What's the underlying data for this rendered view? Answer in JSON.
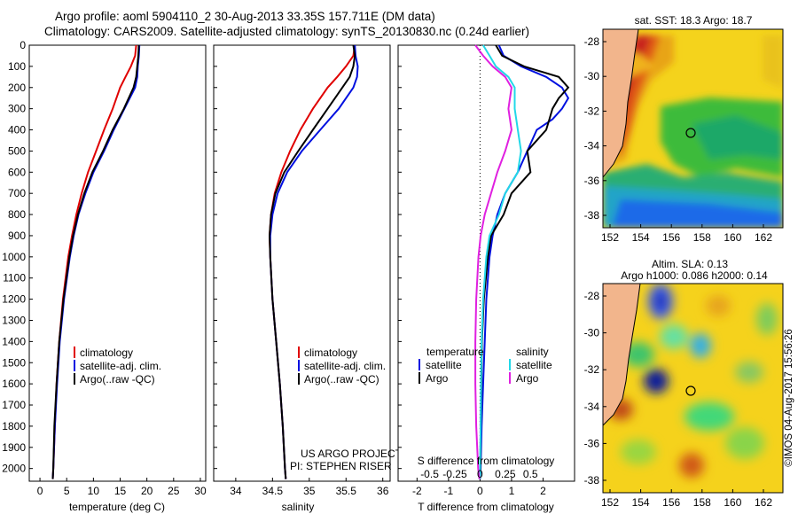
{
  "header": {
    "title_line1": "Argo profile: aoml 5904110_2 30-Aug-2013 33.35S 157.711E (DM data)",
    "title_line2": "Climatology: CARS2009. Satellite-adjusted climatology: synTS_20130830.nc (0.24d earlier)"
  },
  "colors": {
    "climatology": "#e00000",
    "satellite": "#0010e0",
    "argo": "#000000",
    "sat_salinity": "#22d8e8",
    "argo_salinity": "#e020e0"
  },
  "chart_data": [
    {
      "type": "line",
      "id": "temperature",
      "xlabel": "temperature (deg C)",
      "ylabel": "",
      "xlim": [
        -2,
        31
      ],
      "ylim": [
        0,
        2060
      ],
      "xticks": [
        0,
        5,
        10,
        15,
        20,
        25,
        30
      ],
      "yticks": [
        0,
        100,
        200,
        300,
        400,
        500,
        600,
        700,
        800,
        900,
        1000,
        1100,
        1200,
        1300,
        1400,
        1500,
        1600,
        1700,
        1800,
        1900,
        2000
      ],
      "legend": [
        "climatology",
        "satellite-adj. clim.",
        "Argo(..raw -QC)"
      ],
      "series": [
        {
          "name": "climatology",
          "color": "#e00000",
          "depth": [
            0,
            50,
            100,
            150,
            200,
            300,
            400,
            500,
            600,
            700,
            800,
            900,
            1000,
            1200,
            1400,
            1600,
            1800,
            2000,
            2050
          ],
          "values": [
            18.0,
            17.8,
            17.0,
            16.0,
            15.0,
            13.6,
            12.0,
            10.5,
            9.0,
            7.8,
            6.8,
            6.0,
            5.3,
            4.3,
            3.6,
            3.1,
            2.8,
            2.5,
            2.4
          ]
        },
        {
          "name": "satellite-adj. clim.",
          "color": "#0010e0",
          "depth": [
            0,
            50,
            100,
            150,
            200,
            300,
            400,
            500,
            600,
            700,
            800,
            900,
            1000,
            1200,
            1400,
            1600,
            1800,
            2000,
            2050
          ],
          "values": [
            18.6,
            18.5,
            18.3,
            18.2,
            17.8,
            15.8,
            13.8,
            12.0,
            10.0,
            8.5,
            7.2,
            6.3,
            5.6,
            4.5,
            3.7,
            3.2,
            2.8,
            2.5,
            2.4
          ]
        },
        {
          "name": "Argo(..raw -QC)",
          "color": "#000000",
          "depth": [
            0,
            50,
            100,
            150,
            200,
            300,
            400,
            500,
            600,
            700,
            800,
            900,
            1000,
            1200,
            1400,
            1600,
            1800,
            2000,
            2050
          ],
          "values": [
            18.5,
            18.4,
            18.2,
            18.0,
            17.5,
            15.7,
            13.6,
            11.8,
            9.8,
            8.3,
            7.1,
            6.2,
            5.5,
            4.4,
            3.6,
            3.1,
            2.7,
            2.5,
            2.4
          ]
        }
      ]
    },
    {
      "type": "line",
      "id": "salinity",
      "xlabel": "salinity",
      "ylabel": "",
      "xlim": [
        33.7,
        36.1
      ],
      "ylim": [
        0,
        2060
      ],
      "xticks": [
        34,
        34.5,
        35,
        35.5,
        36
      ],
      "legend": [
        "climatology",
        "satellite-adj. clim.",
        "Argo(..raw -QC)"
      ],
      "note_line1": "US ARGO PROJECT",
      "note_line2": "PI: STEPHEN RISER",
      "series": [
        {
          "name": "climatology",
          "color": "#e00000",
          "depth": [
            0,
            50,
            100,
            150,
            200,
            300,
            400,
            500,
            600,
            700,
            800,
            900,
            1000,
            1200,
            1400,
            1600,
            1800,
            2000,
            2050
          ],
          "values": [
            35.62,
            35.6,
            35.5,
            35.38,
            35.25,
            35.05,
            34.88,
            34.74,
            34.62,
            34.53,
            34.48,
            34.46,
            34.47,
            34.5,
            34.55,
            34.6,
            34.64,
            34.67,
            34.68
          ]
        },
        {
          "name": "satellite-adj. clim.",
          "color": "#0010e0",
          "depth": [
            0,
            50,
            100,
            150,
            200,
            300,
            400,
            500,
            600,
            700,
            800,
            900,
            1000,
            1200,
            1400,
            1600,
            1800,
            2000,
            2050
          ],
          "values": [
            35.62,
            35.63,
            35.66,
            35.65,
            35.6,
            35.4,
            35.15,
            34.9,
            34.7,
            34.57,
            34.5,
            34.47,
            34.47,
            34.5,
            34.55,
            34.6,
            34.64,
            34.67,
            34.68
          ]
        },
        {
          "name": "Argo(..raw -QC)",
          "color": "#000000",
          "depth": [
            0,
            50,
            100,
            150,
            200,
            300,
            400,
            500,
            600,
            700,
            800,
            900,
            1000,
            1200,
            1400,
            1600,
            1800,
            2000,
            2050
          ],
          "values": [
            35.6,
            35.62,
            35.6,
            35.55,
            35.45,
            35.25,
            35.05,
            34.85,
            34.66,
            34.54,
            34.48,
            34.46,
            34.47,
            34.5,
            34.55,
            34.6,
            34.64,
            34.67,
            34.68
          ]
        }
      ]
    },
    {
      "type": "line",
      "id": "difference",
      "xlabel": "T difference from climatology",
      "xlabel_top": "S difference from climatology",
      "xlim": [
        -2.6,
        3.0
      ],
      "ylim": [
        0,
        2060
      ],
      "xticks_bottom": [
        -2,
        -1,
        0,
        1,
        2
      ],
      "xticks_top": [
        "-0.5",
        "-0.25",
        "0",
        "0.25",
        "0.5"
      ],
      "xticks_top_pos": [
        -1.6,
        -0.8,
        0.0,
        0.8,
        1.6
      ],
      "legend_left_title": "temperature",
      "legend_right_title": "salinity",
      "legend_left": [
        "satellite",
        "Argo"
      ],
      "legend_right": [
        "satellite",
        "Argo"
      ],
      "series": [
        {
          "name": "temperature satellite",
          "color": "#0010e0",
          "depth": [
            0,
            50,
            100,
            150,
            200,
            250,
            300,
            350,
            400,
            500,
            600,
            700,
            800,
            900,
            1000,
            1200,
            1400,
            1600,
            1800,
            2000,
            2050
          ],
          "values": [
            0.6,
            0.75,
            1.3,
            2.1,
            2.6,
            2.8,
            2.6,
            2.3,
            1.8,
            1.5,
            1.2,
            0.8,
            0.55,
            0.4,
            0.3,
            0.2,
            0.15,
            0.1,
            0.05,
            0.02,
            0.0
          ]
        },
        {
          "name": "temperature Argo",
          "color": "#000000",
          "depth": [
            0,
            50,
            100,
            150,
            200,
            250,
            300,
            350,
            400,
            500,
            600,
            700,
            800,
            900,
            1000,
            1200,
            1400,
            1600,
            1800,
            2000,
            2050
          ],
          "values": [
            0.5,
            0.7,
            1.4,
            2.5,
            2.8,
            2.5,
            2.3,
            2.2,
            2.1,
            1.5,
            1.6,
            1.0,
            0.75,
            0.35,
            0.25,
            0.12,
            0.06,
            0.04,
            0.02,
            0.01,
            0.0
          ]
        },
        {
          "name": "salinity satellite",
          "color": "#22d8e8",
          "depth": [
            0,
            50,
            100,
            150,
            200,
            300,
            400,
            500,
            600,
            700,
            800,
            900,
            1000,
            1200,
            1400,
            1600,
            1800,
            2000,
            2050
          ],
          "values": [
            0.1,
            0.3,
            0.5,
            0.9,
            1.1,
            1.1,
            1.2,
            1.3,
            1.2,
            0.8,
            0.6,
            0.3,
            0.2,
            0.1,
            0.05,
            0.03,
            0.02,
            0.0,
            0.0
          ]
        },
        {
          "name": "salinity Argo",
          "color": "#e020e0",
          "depth": [
            0,
            50,
            100,
            150,
            200,
            300,
            400,
            500,
            600,
            700,
            800,
            900,
            1000,
            1200,
            1400,
            1600,
            1800,
            2000,
            2050
          ],
          "values": [
            -0.15,
            0.1,
            0.4,
            0.8,
            1.0,
            0.9,
            1.0,
            0.8,
            0.55,
            0.35,
            0.15,
            0.02,
            -0.05,
            -0.12,
            -0.15,
            -0.15,
            -0.12,
            -0.06,
            -0.02
          ]
        }
      ]
    }
  ],
  "maps": {
    "sst": {
      "title": "sat. SST: 18.3 Argo: 18.7",
      "yticks": [
        "-28",
        "-30",
        "-32",
        "-34",
        "-36",
        "-38"
      ],
      "xticks": [
        "152",
        "154",
        "156",
        "158",
        "160",
        "162"
      ]
    },
    "sla": {
      "title_line1": "Altim. SLA: 0.13",
      "title_line2": "Argo h1000: 0.086 h2000: 0.14",
      "yticks": [
        "-28",
        "-30",
        "-32",
        "-34",
        "-36",
        "-38"
      ],
      "xticks": [
        "152",
        "154",
        "156",
        "158",
        "160",
        "162"
      ]
    }
  },
  "footer": {
    "credit": "©IMOS 04-Aug-2017 15:56:26"
  }
}
